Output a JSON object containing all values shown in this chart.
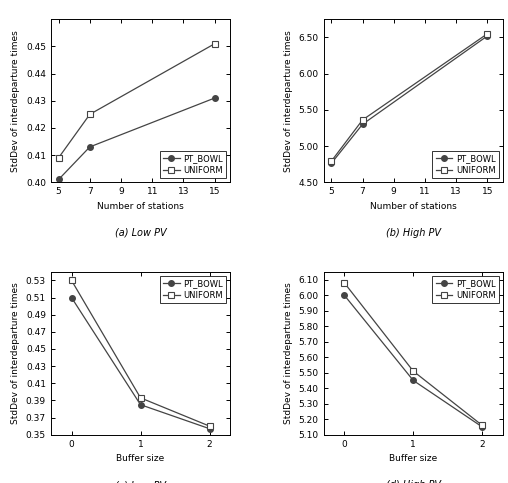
{
  "subplot_a": {
    "caption": "(a) Low PV",
    "xlabel": "Number of stations",
    "ylabel": "StdDev of interdeparture times",
    "x": [
      5,
      7,
      15
    ],
    "pt_bowl": [
      0.401,
      0.413,
      0.431
    ],
    "uniform": [
      0.409,
      0.425,
      0.451
    ],
    "ylim": [
      0.4,
      0.46
    ],
    "xlim": [
      4.5,
      16
    ],
    "yticks": [
      0.4,
      0.41,
      0.42,
      0.43,
      0.44,
      0.45
    ],
    "xticks": [
      5,
      7,
      9,
      11,
      13,
      15
    ],
    "legend_loc": "lower right"
  },
  "subplot_b": {
    "caption": "(b) High PV",
    "xlabel": "Number of stations",
    "ylabel": "StdDev of interdeparture times",
    "x": [
      5,
      7,
      15
    ],
    "pt_bowl": [
      4.76,
      5.3,
      6.52
    ],
    "uniform": [
      4.79,
      5.36,
      6.55
    ],
    "ylim": [
      4.5,
      6.75
    ],
    "xlim": [
      4.5,
      16
    ],
    "yticks": [
      4.5,
      5.0,
      5.5,
      6.0,
      6.5
    ],
    "xticks": [
      5,
      7,
      9,
      11,
      13,
      15
    ],
    "legend_loc": "lower right"
  },
  "subplot_c": {
    "caption": "(c) Low PV",
    "xlabel": "Buffer size",
    "ylabel": "StdDev of interdeparture times",
    "x": [
      0,
      1,
      2
    ],
    "pt_bowl": [
      0.51,
      0.385,
      0.357
    ],
    "uniform": [
      0.53,
      0.393,
      0.36
    ],
    "ylim": [
      0.35,
      0.54
    ],
    "xlim": [
      -0.3,
      2.3
    ],
    "yticks": [
      0.35,
      0.37,
      0.39,
      0.41,
      0.43,
      0.45,
      0.47,
      0.49,
      0.51,
      0.53
    ],
    "xticks": [
      0,
      1,
      2
    ],
    "legend_loc": "upper right"
  },
  "subplot_d": {
    "caption": "(d) High PV",
    "xlabel": "Buffer size",
    "ylabel": "StdDev of interdeparture times",
    "x": [
      0,
      1,
      2
    ],
    "pt_bowl": [
      6.0,
      5.45,
      5.15
    ],
    "uniform": [
      6.08,
      5.51,
      5.16
    ],
    "ylim": [
      5.1,
      6.15
    ],
    "xlim": [
      -0.3,
      2.3
    ],
    "yticks": [
      5.1,
      5.2,
      5.3,
      5.4,
      5.5,
      5.6,
      5.7,
      5.8,
      5.9,
      6.0,
      6.1
    ],
    "xticks": [
      0,
      1,
      2
    ],
    "legend_loc": "upper right"
  },
  "line_color": "#444444",
  "pt_bowl_marker": "o",
  "uniform_marker": "s",
  "marker_size": 4,
  "legend_labels": [
    "PT_BOWL",
    "UNIFORM"
  ],
  "font_size": 6.5,
  "label_font_size": 6.5,
  "caption_font_size": 7.0
}
